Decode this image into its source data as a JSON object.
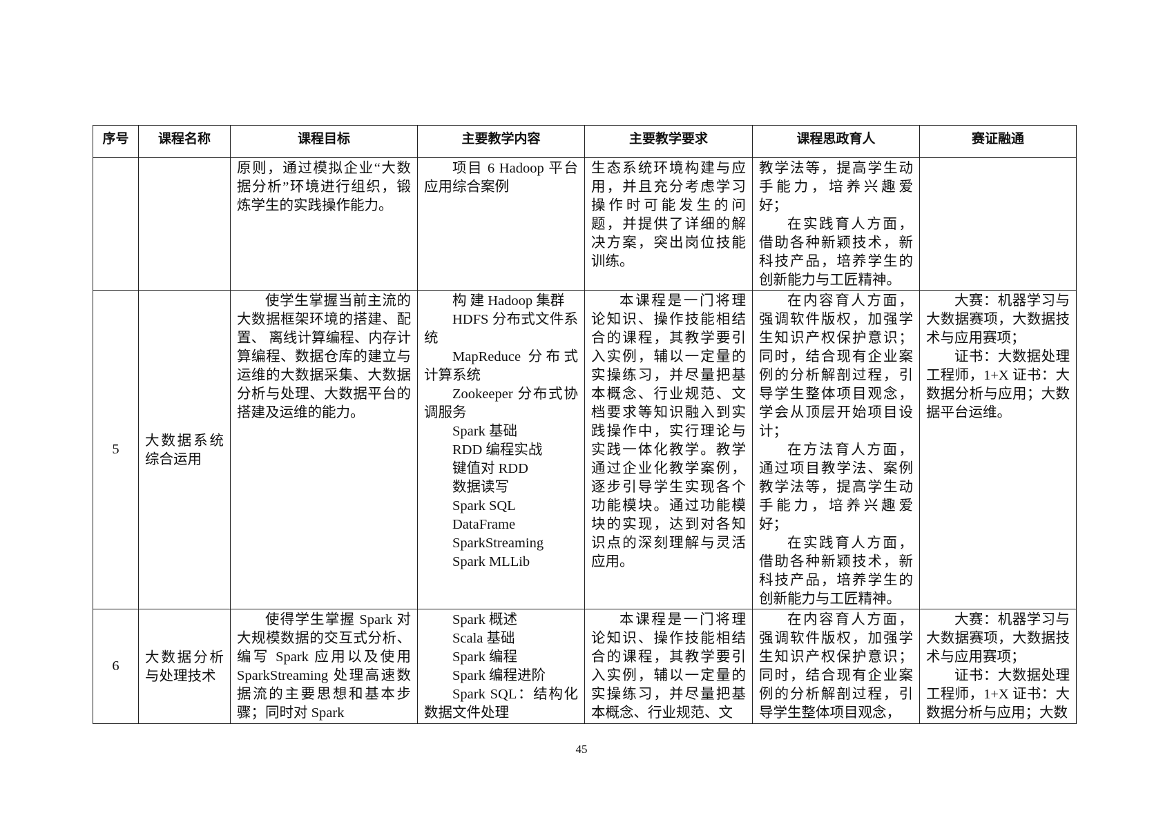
{
  "table": {
    "headers": [
      "序号",
      "课程名称",
      "课程目标",
      "主要教学内容",
      "主要教学要求",
      "课程思政育人",
      "赛证融通"
    ],
    "rows": [
      {
        "no": "",
        "name": "",
        "goal": [
          {
            "t": "原则，通过模拟企业“大数据分析”环境进行组织，锻炼学生的实践操作能力。",
            "i": false
          }
        ],
        "content": [
          {
            "t": "项目 6 Hadoop 平台应用综合案例",
            "i": true
          }
        ],
        "requirement": [
          {
            "t": "生态系统环境构建与应用，并且充分考虑学习操作时可能发生的问题，并提供了详细的解决方案，突出岗位技能训练。",
            "i": false
          }
        ],
        "ideology": [
          {
            "t": "教学法等，提高学生动手能力，培养兴趣爱好；",
            "i": false
          },
          {
            "t": "在实践育人方面，借助各种新颖技术，新科技产品，培养学生的创新能力与工匠精神。",
            "i": true
          }
        ],
        "certificate": []
      },
      {
        "no": "5",
        "name": "大数据系统综合运用",
        "goal": [
          {
            "t": "使学生掌握当前主流的大数据框架环境的搭建、配置、 离线计算编程、内存计算编程、数据仓库的建立与运维的大数据采集、大数据分析与处理、大数据平台的搭建及运维的能力。",
            "i": true
          }
        ],
        "content": [
          {
            "t": "构 建 Hadoop 集群",
            "i": true
          },
          {
            "t": "HDFS 分布式文件系统",
            "i": true
          },
          {
            "t": "MapReduce 分布式计算系统",
            "i": true
          },
          {
            "t": "Zookeeper 分布式协调服务",
            "i": true
          },
          {
            "t": "Spark 基础",
            "i": true
          },
          {
            "t": "RDD 编程实战",
            "i": true
          },
          {
            "t": "键值对 RDD",
            "i": true
          },
          {
            "t": "数据读写",
            "i": true
          },
          {
            "t": "Spark SQL",
            "i": true
          },
          {
            "t": "DataFrame",
            "i": true
          },
          {
            "t": "SparkStreaming",
            "i": true
          },
          {
            "t": "Spark MLLib",
            "i": true
          }
        ],
        "requirement": [
          {
            "t": "本课程是一门将理论知识、操作技能相结合的课程，其教学要引入实例，辅以一定量的实操练习，并尽量把基本概念、行业规范、文档要求等知识融入到实践操作中，实行理论与实践一体化教学。教学通过企业化教学案例，逐步引导学生实现各个功能模块。通过功能模块的实现，达到对各知识点的深刻理解与灵活应用。",
            "i": true
          }
        ],
        "ideology": [
          {
            "t": "在内容育人方面，强调软件版权，加强学生知识产权保护意识；同时，结合现有企业案例的分析解剖过程，引导学生整体项目观念，学会从顶层开始项目设计；",
            "i": true
          },
          {
            "t": "在方法育人方面，通过项目教学法、案例教学法等，提高学生动手能力，培养兴趣爱好；",
            "i": true
          },
          {
            "t": "在实践育人方面，借助各种新颖技术，新科技产品，培养学生的创新能力与工匠精神。",
            "i": true
          }
        ],
        "certificate": [
          {
            "t": "大赛：机器学习与大数据赛项，大数据技术与应用赛项；",
            "i": true
          },
          {
            "t": "证书：大数据处理工程师，1+X 证书：大数据分析与应用；大数据平台运维。",
            "i": true
          }
        ]
      },
      {
        "no": "6",
        "name": "大数据分析与处理技术",
        "goal": [
          {
            "t": "使得学生掌握 Spark 对大规模数据的交互式分析、编写 Spark 应用以及使用 SparkStreaming 处理高速数据流的主要思想和基本步骤；同时对 Spark",
            "i": true
          }
        ],
        "content": [
          {
            "t": "Spark 概述",
            "i": true
          },
          {
            "t": "Scala 基础",
            "i": true
          },
          {
            "t": "Spark 编程",
            "i": true
          },
          {
            "t": "Spark 编程进阶",
            "i": true
          },
          {
            "t": "Spark SQL：结构化数据文件处理",
            "i": true
          }
        ],
        "requirement": [
          {
            "t": "本课程是一门将理论知识、操作技能相结合的课程，其教学要引入实例，辅以一定量的实操练习，并尽量把基本概念、行业规范、文",
            "i": true
          }
        ],
        "ideology": [
          {
            "t": "在内容育人方面，强调软件版权，加强学生知识产权保护意识；同时，结合现有企业案例的分析解剖过程，引导学生整体项目观念，",
            "i": true
          }
        ],
        "certificate": [
          {
            "t": "大赛：机器学习与大数据赛项，大数据技术与应用赛项；",
            "i": true
          },
          {
            "t": "证书：大数据处理工程师，1+X 证书：大数据分析与应用；大数",
            "i": true
          }
        ]
      }
    ]
  },
  "page_number": "45"
}
